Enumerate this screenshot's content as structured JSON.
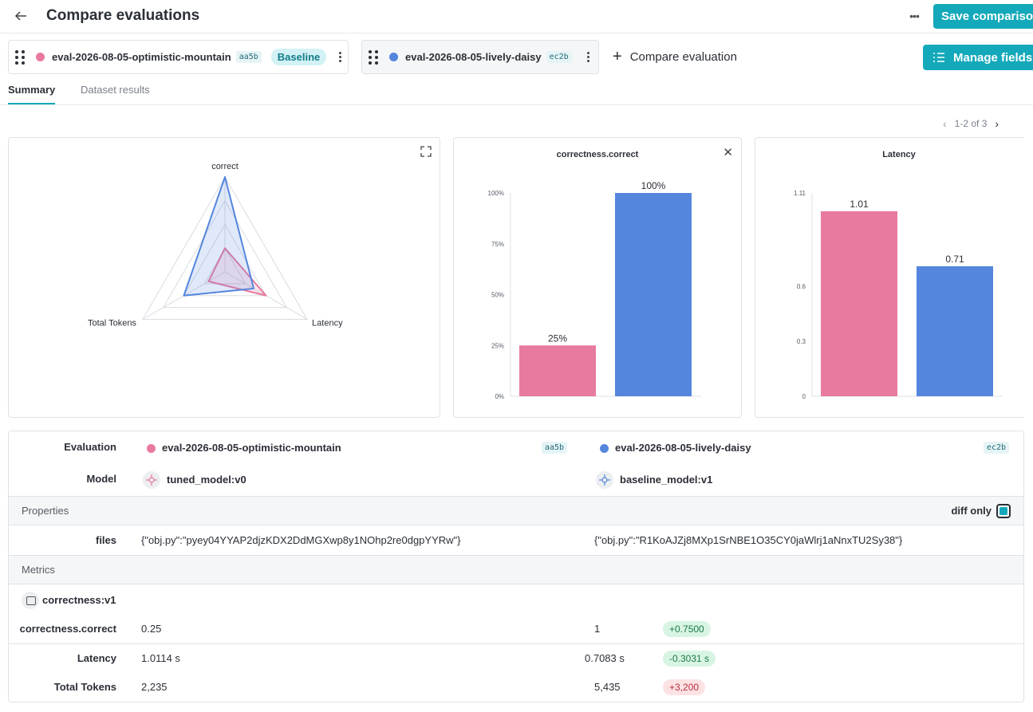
{
  "header": {
    "title": "Compare evaluations",
    "save_label": "Save comparison"
  },
  "evals": [
    {
      "name": "eval-2026-08-05-optimistic-mountain",
      "hash": "aa5b",
      "badge": "Baseline",
      "color": "#e8799f"
    },
    {
      "name": "eval-2026-08-05-lively-daisy",
      "hash": "ec2b",
      "color": "#5586dd"
    }
  ],
  "compare_label": "Compare evaluation",
  "manage_fields_label": "Manage fields",
  "tabs": [
    {
      "label": "Summary",
      "active": true
    },
    {
      "label": "Dataset results",
      "active": false
    }
  ],
  "pagination": {
    "label": "1-2 of 3"
  },
  "charts": {
    "radar": {
      "axes": [
        "correct",
        "Latency",
        "Total Tokens"
      ]
    },
    "correctness": {
      "title": "correctness.correct",
      "y_ticks": [
        "0%",
        "25%",
        "50%",
        "75%",
        "100%"
      ],
      "bar_labels": [
        "25%",
        "100%"
      ]
    },
    "latency": {
      "title": "Latency",
      "y_ticks": [
        "0",
        "0.3",
        "0.6",
        "1.11"
      ],
      "bar_labels": [
        "1.01",
        "0.71"
      ]
    }
  },
  "chart_data": [
    {
      "type": "radar",
      "axes": [
        "correct",
        "Latency",
        "Total Tokens"
      ],
      "series": [
        {
          "name": "eval-2026-08-05-optimistic-mountain",
          "values": [
            0.25,
            1.01,
            2235
          ],
          "normalized": [
            0.25,
            0.5,
            0.2
          ]
        },
        {
          "name": "eval-2026-08-05-lively-daisy",
          "values": [
            1,
            0.71,
            5435
          ],
          "normalized": [
            1.0,
            0.35,
            0.5
          ]
        }
      ]
    },
    {
      "type": "bar",
      "title": "correctness.correct",
      "categories": [
        "eval-2026-08-05-optimistic-mountain",
        "eval-2026-08-05-lively-daisy"
      ],
      "values": [
        25,
        100
      ],
      "ylim": [
        0,
        100
      ]
    },
    {
      "type": "bar",
      "title": "Latency",
      "categories": [
        "eval-2026-08-05-optimistic-mountain",
        "eval-2026-08-05-lively-daisy"
      ],
      "values": [
        1.01,
        0.71
      ],
      "ylim": [
        0,
        1.11
      ]
    }
  ],
  "table": {
    "evaluation_label": "Evaluation",
    "model_label": "Model",
    "models": [
      "tuned_model:v0",
      "baseline_model:v1"
    ],
    "properties_label": "Properties",
    "diff_only_label": "diff only",
    "files_label": "files",
    "files": [
      "{\"obj.py\":\"pyey04YYAP2djzKDX2DdMGXwp8y1NOhp2re0dgpYYRw\"}",
      "{\"obj.py\":\"R1KoAJZj8MXp1SrNBE1O35CY0jaWlrj1aNnxTU2Sy38\"}"
    ],
    "metrics_label": "Metrics",
    "scorer": "correctness:v1",
    "metrics": [
      {
        "label": "correctness.correct",
        "a": "0.25",
        "b": "1",
        "delta": "+0.7500",
        "good": true
      },
      {
        "label": "Latency",
        "a": "1.0114 s",
        "b": "0.7083 s",
        "delta": "-0.3031 s",
        "good": true
      },
      {
        "label": "Total Tokens",
        "a": "2,235",
        "b": "5,435",
        "delta": "+3,200",
        "good": false
      }
    ]
  }
}
